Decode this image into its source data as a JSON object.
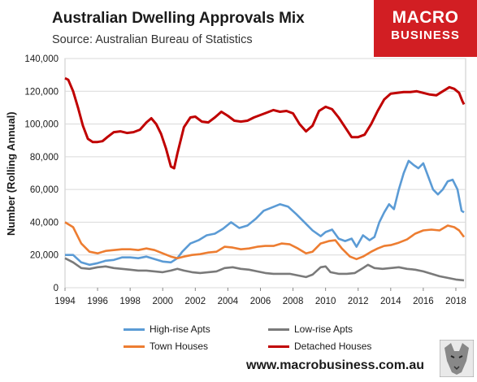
{
  "header": {
    "title": "Australian Dwelling Approvals Mix",
    "subtitle": "Source: Australian Bureau of Statistics"
  },
  "logo": {
    "line1": "MACRO",
    "line2": "BUSINESS",
    "bg": "#d21e23"
  },
  "footer": {
    "website": "www.macrobusiness.com.au"
  },
  "chart_data": {
    "type": "line",
    "title": "Australian Dwelling Approvals Mix",
    "ylabel": "Number (Rolling Annual)",
    "xlabel": "",
    "xlim": [
      1994,
      2018.6
    ],
    "ylim": [
      0,
      140000
    ],
    "xticks": [
      1994,
      1996,
      1998,
      2000,
      2002,
      2004,
      2006,
      2008,
      2010,
      2012,
      2014,
      2016,
      2018
    ],
    "yticks": [
      0,
      20000,
      40000,
      60000,
      80000,
      100000,
      120000,
      140000
    ],
    "ytick_labels": [
      "0",
      "20,000",
      "40,000",
      "60,000",
      "80,000",
      "100,000",
      "120,000",
      "140,000"
    ],
    "grid": true,
    "legend_position": "bottom",
    "series": [
      {
        "name": "High-rise Apts",
        "color": "#5b9bd5",
        "points": [
          [
            1994.0,
            20000
          ],
          [
            1994.5,
            20000
          ],
          [
            1995.0,
            15500
          ],
          [
            1995.5,
            14000
          ],
          [
            1996.0,
            15000
          ],
          [
            1996.5,
            16500
          ],
          [
            1997.0,
            17000
          ],
          [
            1997.5,
            18500
          ],
          [
            1998.0,
            18500
          ],
          [
            1998.5,
            18000
          ],
          [
            1999.0,
            19000
          ],
          [
            1999.5,
            17500
          ],
          [
            2000.0,
            16000
          ],
          [
            2000.5,
            15500
          ],
          [
            2000.9,
            18000
          ],
          [
            2001.2,
            22000
          ],
          [
            2001.7,
            27000
          ],
          [
            2002.2,
            29000
          ],
          [
            2002.7,
            32000
          ],
          [
            2003.2,
            33000
          ],
          [
            2003.7,
            36000
          ],
          [
            2004.2,
            40000
          ],
          [
            2004.7,
            36500
          ],
          [
            2005.2,
            38000
          ],
          [
            2005.7,
            42000
          ],
          [
            2006.2,
            47000
          ],
          [
            2006.7,
            49000
          ],
          [
            2007.2,
            51000
          ],
          [
            2007.7,
            49500
          ],
          [
            2008.2,
            45000
          ],
          [
            2008.7,
            40000
          ],
          [
            2009.2,
            35000
          ],
          [
            2009.7,
            31500
          ],
          [
            2010.0,
            34000
          ],
          [
            2010.4,
            35500
          ],
          [
            2010.8,
            30000
          ],
          [
            2011.2,
            28500
          ],
          [
            2011.6,
            30000
          ],
          [
            2011.9,
            25000
          ],
          [
            2012.3,
            32000
          ],
          [
            2012.7,
            29000
          ],
          [
            2013.0,
            31000
          ],
          [
            2013.3,
            40000
          ],
          [
            2013.6,
            46000
          ],
          [
            2013.9,
            51000
          ],
          [
            2014.2,
            48000
          ],
          [
            2014.5,
            60000
          ],
          [
            2014.8,
            70000
          ],
          [
            2015.1,
            77500
          ],
          [
            2015.4,
            75000
          ],
          [
            2015.7,
            73000
          ],
          [
            2016.0,
            76000
          ],
          [
            2016.3,
            68000
          ],
          [
            2016.6,
            60000
          ],
          [
            2016.9,
            57000
          ],
          [
            2017.2,
            60000
          ],
          [
            2017.5,
            65000
          ],
          [
            2017.8,
            66000
          ],
          [
            2018.1,
            60000
          ],
          [
            2018.35,
            47000
          ],
          [
            2018.5,
            46000
          ]
        ]
      },
      {
        "name": "Low-rise Apts",
        "color": "#7a7a7a",
        "points": [
          [
            1994.0,
            18000
          ],
          [
            1994.5,
            15500
          ],
          [
            1995.0,
            12000
          ],
          [
            1995.5,
            11500
          ],
          [
            1996.0,
            12500
          ],
          [
            1996.5,
            13000
          ],
          [
            1997.0,
            12000
          ],
          [
            1997.5,
            11500
          ],
          [
            1998.0,
            11000
          ],
          [
            1998.5,
            10500
          ],
          [
            1999.0,
            10500
          ],
          [
            1999.5,
            10000
          ],
          [
            2000.0,
            9500
          ],
          [
            2000.5,
            10500
          ],
          [
            2000.9,
            11500
          ],
          [
            2001.3,
            10500
          ],
          [
            2001.8,
            9500
          ],
          [
            2002.3,
            9000
          ],
          [
            2002.8,
            9500
          ],
          [
            2003.3,
            10000
          ],
          [
            2003.8,
            12000
          ],
          [
            2004.3,
            12500
          ],
          [
            2004.8,
            11500
          ],
          [
            2005.3,
            11000
          ],
          [
            2005.8,
            10000
          ],
          [
            2006.3,
            9000
          ],
          [
            2006.8,
            8500
          ],
          [
            2007.3,
            8500
          ],
          [
            2007.8,
            8500
          ],
          [
            2008.3,
            7500
          ],
          [
            2008.8,
            6500
          ],
          [
            2009.2,
            8000
          ],
          [
            2009.7,
            12500
          ],
          [
            2010.0,
            13000
          ],
          [
            2010.3,
            9500
          ],
          [
            2010.8,
            8500
          ],
          [
            2011.3,
            8500
          ],
          [
            2011.8,
            9000
          ],
          [
            2012.3,
            12000
          ],
          [
            2012.6,
            14000
          ],
          [
            2013.0,
            12000
          ],
          [
            2013.5,
            11500
          ],
          [
            2014.0,
            12000
          ],
          [
            2014.5,
            12500
          ],
          [
            2015.0,
            11500
          ],
          [
            2015.5,
            11000
          ],
          [
            2016.0,
            10000
          ],
          [
            2016.5,
            8500
          ],
          [
            2017.0,
            7000
          ],
          [
            2017.5,
            6000
          ],
          [
            2018.0,
            5000
          ],
          [
            2018.5,
            4500
          ]
        ]
      },
      {
        "name": "Town Houses",
        "color": "#ed7d31",
        "points": [
          [
            1994.0,
            40000
          ],
          [
            1994.5,
            37000
          ],
          [
            1995.0,
            27000
          ],
          [
            1995.5,
            22000
          ],
          [
            1996.0,
            21000
          ],
          [
            1996.5,
            22500
          ],
          [
            1997.0,
            23000
          ],
          [
            1997.5,
            23500
          ],
          [
            1998.0,
            23500
          ],
          [
            1998.5,
            23000
          ],
          [
            1999.0,
            24000
          ],
          [
            1999.5,
            23000
          ],
          [
            2000.0,
            21000
          ],
          [
            2000.5,
            19000
          ],
          [
            2000.9,
            18000
          ],
          [
            2001.3,
            19000
          ],
          [
            2001.8,
            20000
          ],
          [
            2002.3,
            20500
          ],
          [
            2002.8,
            21500
          ],
          [
            2003.3,
            22000
          ],
          [
            2003.8,
            25000
          ],
          [
            2004.3,
            24500
          ],
          [
            2004.8,
            23500
          ],
          [
            2005.3,
            24000
          ],
          [
            2005.8,
            25000
          ],
          [
            2006.3,
            25500
          ],
          [
            2006.8,
            25500
          ],
          [
            2007.3,
            27000
          ],
          [
            2007.8,
            26500
          ],
          [
            2008.3,
            24000
          ],
          [
            2008.8,
            21000
          ],
          [
            2009.2,
            22000
          ],
          [
            2009.7,
            27000
          ],
          [
            2010.2,
            28500
          ],
          [
            2010.6,
            29000
          ],
          [
            2011.0,
            24000
          ],
          [
            2011.5,
            19000
          ],
          [
            2011.9,
            17500
          ],
          [
            2012.3,
            19000
          ],
          [
            2012.8,
            22000
          ],
          [
            2013.2,
            24000
          ],
          [
            2013.6,
            25500
          ],
          [
            2014.0,
            26000
          ],
          [
            2014.5,
            27500
          ],
          [
            2015.0,
            29500
          ],
          [
            2015.5,
            33000
          ],
          [
            2016.0,
            35000
          ],
          [
            2016.5,
            35500
          ],
          [
            2017.0,
            35000
          ],
          [
            2017.5,
            38000
          ],
          [
            2017.9,
            37000
          ],
          [
            2018.2,
            35000
          ],
          [
            2018.5,
            31000
          ]
        ]
      },
      {
        "name": "Detached Houses",
        "color": "#c00000",
        "points": [
          [
            1994.0,
            128000
          ],
          [
            1994.2,
            127000
          ],
          [
            1994.5,
            120000
          ],
          [
            1994.8,
            110000
          ],
          [
            1995.1,
            99000
          ],
          [
            1995.4,
            91000
          ],
          [
            1995.7,
            89000
          ],
          [
            1996.0,
            89000
          ],
          [
            1996.3,
            89500
          ],
          [
            1996.6,
            92000
          ],
          [
            1997.0,
            95000
          ],
          [
            1997.4,
            95500
          ],
          [
            1997.8,
            94500
          ],
          [
            1998.2,
            95000
          ],
          [
            1998.6,
            96500
          ],
          [
            1999.0,
            101000
          ],
          [
            1999.3,
            103500
          ],
          [
            1999.6,
            100000
          ],
          [
            1999.9,
            94000
          ],
          [
            2000.2,
            85000
          ],
          [
            2000.5,
            74000
          ],
          [
            2000.7,
            73000
          ],
          [
            2000.9,
            82000
          ],
          [
            2001.3,
            98000
          ],
          [
            2001.7,
            104000
          ],
          [
            2002.0,
            104500
          ],
          [
            2002.4,
            101500
          ],
          [
            2002.8,
            101000
          ],
          [
            2003.2,
            104000
          ],
          [
            2003.6,
            107500
          ],
          [
            2004.0,
            105000
          ],
          [
            2004.4,
            102000
          ],
          [
            2004.8,
            101500
          ],
          [
            2005.2,
            102000
          ],
          [
            2005.6,
            104000
          ],
          [
            2006.0,
            105500
          ],
          [
            2006.4,
            107000
          ],
          [
            2006.8,
            108500
          ],
          [
            2007.2,
            107500
          ],
          [
            2007.6,
            108000
          ],
          [
            2008.0,
            106500
          ],
          [
            2008.4,
            100000
          ],
          [
            2008.8,
            95500
          ],
          [
            2009.2,
            99000
          ],
          [
            2009.6,
            108000
          ],
          [
            2010.0,
            110500
          ],
          [
            2010.4,
            109000
          ],
          [
            2010.8,
            104000
          ],
          [
            2011.2,
            98000
          ],
          [
            2011.6,
            92000
          ],
          [
            2012.0,
            92000
          ],
          [
            2012.4,
            93500
          ],
          [
            2012.8,
            100000
          ],
          [
            2013.2,
            108000
          ],
          [
            2013.6,
            115000
          ],
          [
            2014.0,
            118500
          ],
          [
            2014.4,
            119000
          ],
          [
            2014.8,
            119500
          ],
          [
            2015.2,
            119500
          ],
          [
            2015.6,
            120000
          ],
          [
            2016.0,
            119000
          ],
          [
            2016.4,
            118000
          ],
          [
            2016.8,
            117500
          ],
          [
            2017.2,
            120000
          ],
          [
            2017.6,
            122500
          ],
          [
            2017.9,
            121500
          ],
          [
            2018.2,
            119000
          ],
          [
            2018.4,
            114000
          ],
          [
            2018.5,
            112000
          ]
        ]
      }
    ]
  }
}
